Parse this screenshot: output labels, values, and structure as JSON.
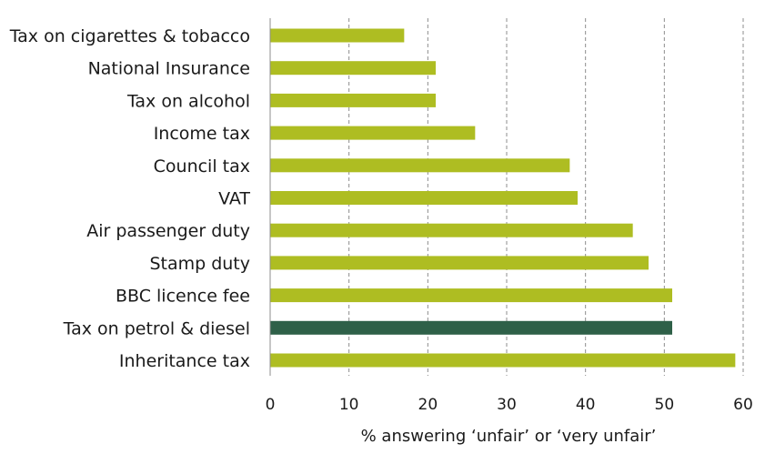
{
  "chart_data": {
    "type": "bar",
    "orientation": "horizontal",
    "categories": [
      "Tax on cigarettes & tobacco",
      "National Insurance",
      "Tax on alcohol",
      "Income tax",
      "Council tax",
      "VAT",
      "Air passenger duty",
      "Stamp duty",
      "BBC licence fee",
      "Tax on petrol & diesel",
      "Inheritance tax"
    ],
    "values": [
      17,
      21,
      21,
      26,
      38,
      39,
      46,
      48,
      51,
      51,
      59
    ],
    "highlight_index": 9,
    "colors": {
      "bar": "#aebd22",
      "highlight": "#2e6048"
    },
    "xlabel": "% answering ‘unfair’ or ‘very unfair’",
    "xlim": [
      0,
      60
    ],
    "xticks": [
      0,
      10,
      20,
      30,
      40,
      50,
      60
    ],
    "grid": "vertical dashed"
  }
}
